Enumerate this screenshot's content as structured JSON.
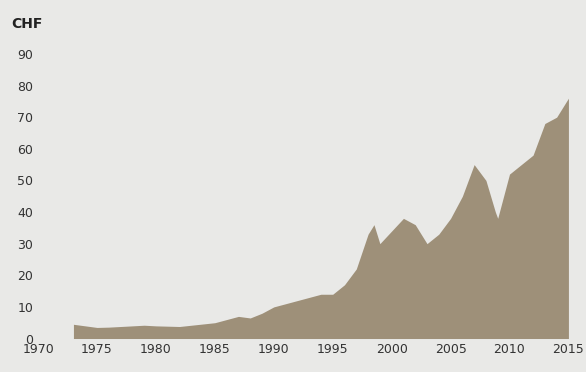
{
  "chart_data": {
    "type": "area",
    "ylabel": "CHF",
    "x": [
      1973,
      1974,
      1975,
      1976,
      1977,
      1978,
      1979,
      1980,
      1981,
      1982,
      1983,
      1984,
      1985,
      1986,
      1987,
      1988,
      1989,
      1990,
      1991,
      1992,
      1993,
      1994,
      1995,
      1996,
      1997,
      1998,
      1998.5,
      1999,
      2000,
      2001,
      2002,
      2003,
      2004,
      2005,
      2006,
      2007,
      2008,
      2008.8,
      2009,
      2010,
      2011,
      2012,
      2013,
      2014,
      2015
    ],
    "values": [
      4.5,
      4,
      3.5,
      3.6,
      3.8,
      4,
      4.2,
      4,
      3.9,
      3.8,
      4.2,
      4.6,
      5,
      6,
      7,
      6.5,
      8,
      10,
      11,
      12,
      13,
      14,
      14,
      17,
      22,
      33,
      36,
      30,
      34,
      38,
      36,
      30,
      33,
      38,
      45,
      55,
      50,
      40,
      38,
      52,
      55,
      58,
      68,
      70,
      76
    ],
    "color": "#9e9079",
    "xlim": [
      1970,
      2015
    ],
    "xticks": [
      1970,
      1975,
      1980,
      1985,
      1990,
      1995,
      2000,
      2005,
      2010,
      2015
    ],
    "ylim": [
      0,
      90
    ],
    "yticks": [
      0,
      10,
      20,
      30,
      40,
      50,
      60,
      70,
      80,
      90
    ],
    "grid": false
  }
}
